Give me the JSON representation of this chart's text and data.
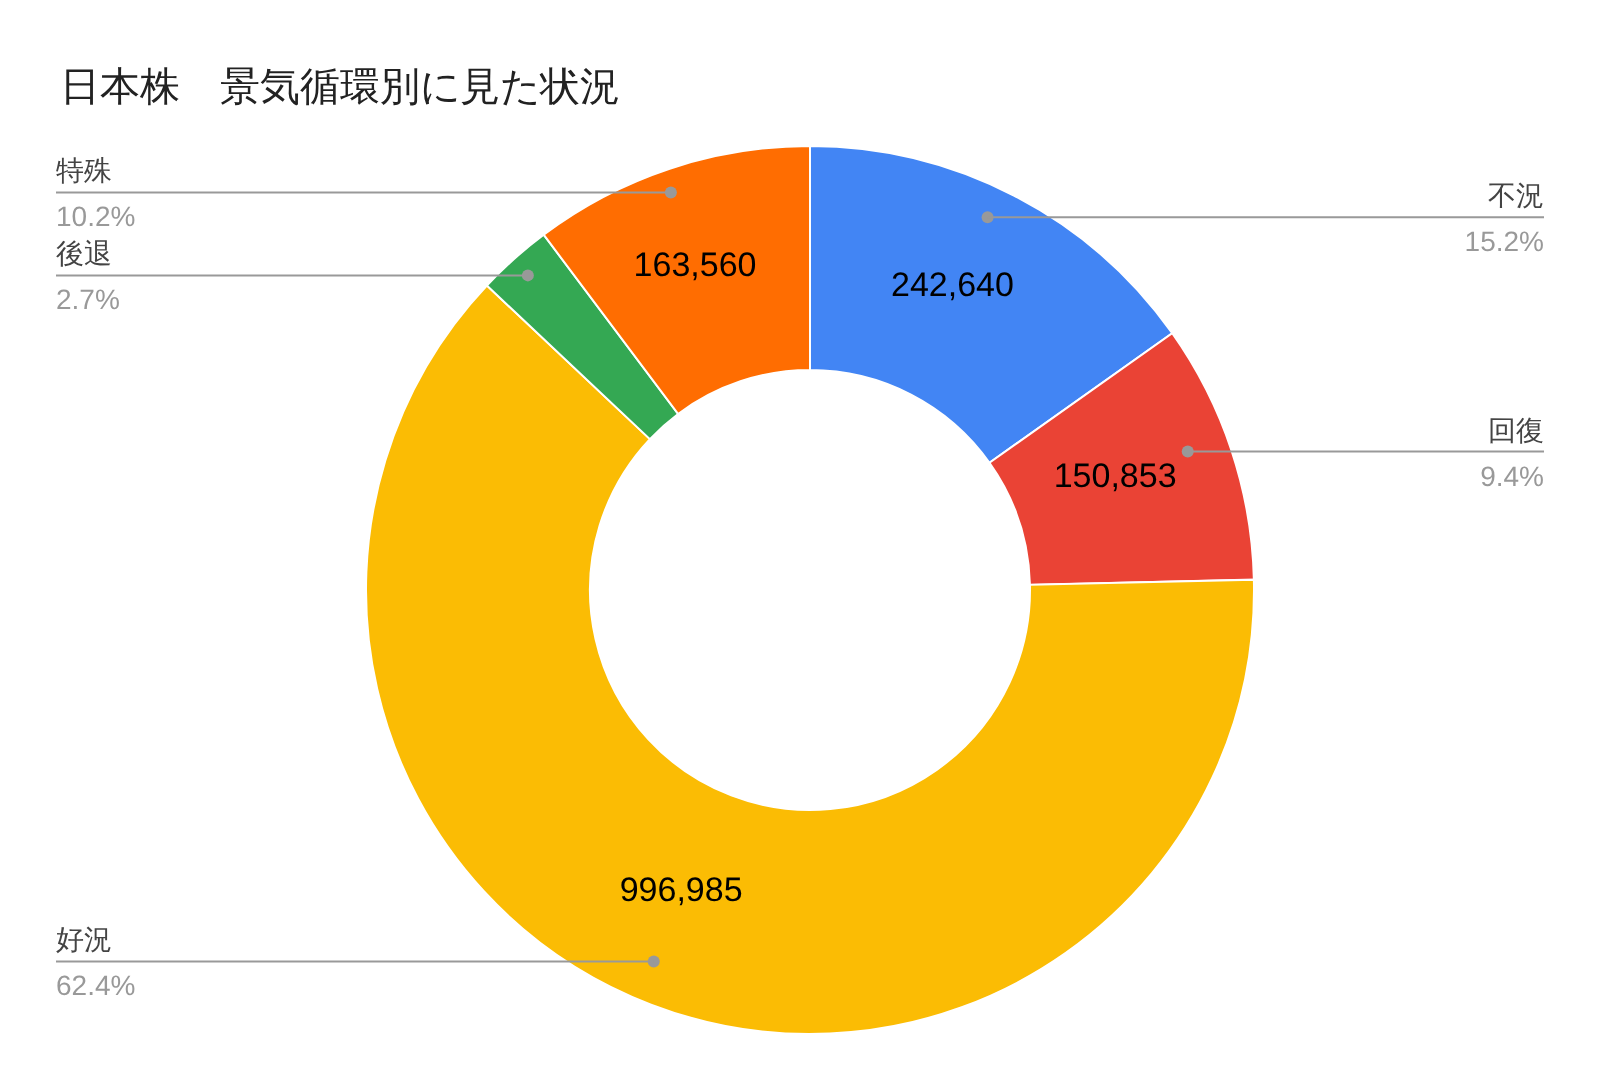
{
  "chart_data": {
    "type": "donut",
    "title": "日本株　景気循環別に見た状況",
    "categories": [
      "不況",
      "回復",
      "好況",
      "後退",
      "特殊"
    ],
    "values": [
      242640,
      150853,
      996985,
      43700,
      163560
    ],
    "colors": [
      "#4285f4",
      "#ea4335",
      "#fbbc04",
      "#34a853",
      "#ff6d01"
    ],
    "value_labels": [
      "242,640",
      "150,853",
      "996,985",
      null,
      "163,560"
    ],
    "annotations": [
      "15.2%",
      "9.4%",
      "62.4%",
      "2.7%",
      "10.2%"
    ]
  }
}
